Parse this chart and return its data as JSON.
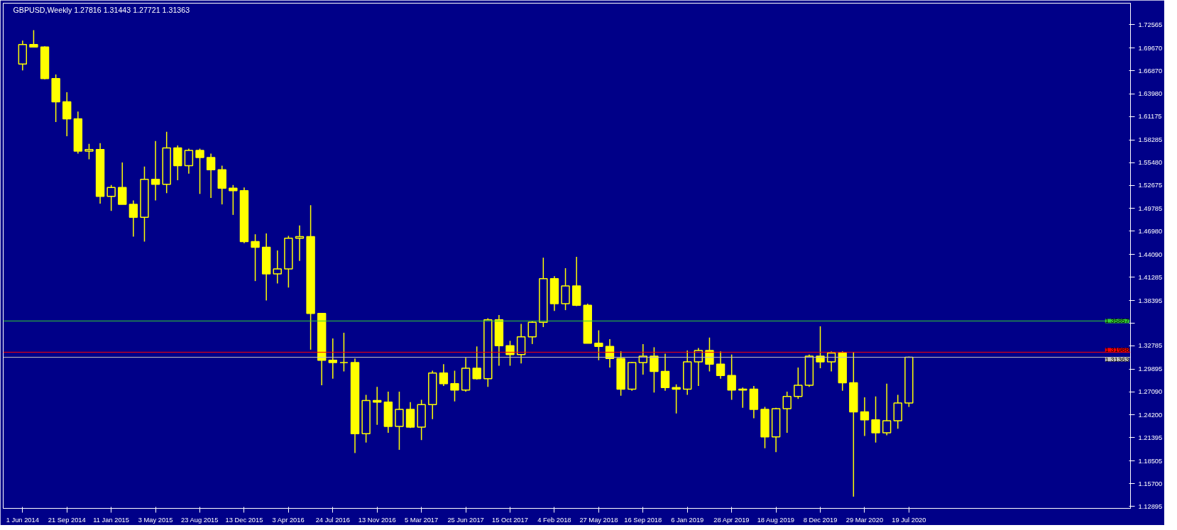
{
  "chart_data": {
    "type": "candlestick",
    "title": "GBPUSD,Weekly  1.27816 1.31443 1.27721 1.31363",
    "x": [
      "2014-06-01",
      "2014-06-29",
      "2014-07-27",
      "2014-08-24",
      "2014-09-21",
      "2014-10-19",
      "2014-11-16",
      "2014-12-14",
      "2015-01-11",
      "2015-02-08",
      "2015-03-08",
      "2015-04-05",
      "2015-05-03",
      "2015-05-31",
      "2015-06-28",
      "2015-07-26",
      "2015-08-23",
      "2015-09-20",
      "2015-10-18",
      "2015-11-15",
      "2015-12-13",
      "2016-01-10",
      "2016-02-07",
      "2016-03-06",
      "2016-04-03",
      "2016-05-01",
      "2016-05-29",
      "2016-06-26",
      "2016-07-24",
      "2016-08-21",
      "2016-09-18",
      "2016-10-16",
      "2016-11-13",
      "2016-12-11",
      "2017-01-08",
      "2017-02-05",
      "2017-03-05",
      "2017-04-02",
      "2017-04-30",
      "2017-05-28",
      "2017-06-25",
      "2017-07-23",
      "2017-08-20",
      "2017-09-17",
      "2017-10-15",
      "2017-11-12",
      "2017-12-10",
      "2018-01-07",
      "2018-02-04",
      "2018-03-04",
      "2018-04-01",
      "2018-04-29",
      "2018-05-27",
      "2018-06-24",
      "2018-07-22",
      "2018-08-19",
      "2018-09-16",
      "2018-10-14",
      "2018-11-11",
      "2018-12-09",
      "2019-01-06",
      "2019-02-03",
      "2019-03-03",
      "2019-03-31",
      "2019-04-28",
      "2019-05-26",
      "2019-06-23",
      "2019-07-21",
      "2019-08-18",
      "2019-09-15",
      "2019-10-13",
      "2019-11-10",
      "2019-12-08",
      "2020-01-05",
      "2020-02-02",
      "2020-03-01",
      "2020-03-29",
      "2020-04-26",
      "2020-05-24",
      "2020-06-21",
      "2020-07-19"
    ],
    "ohlc": [
      [
        1.677,
        1.706,
        1.669,
        1.701
      ],
      [
        1.701,
        1.719,
        1.698,
        1.698
      ],
      [
        1.698,
        1.699,
        1.658,
        1.659
      ],
      [
        1.659,
        1.664,
        1.605,
        1.63
      ],
      [
        1.63,
        1.642,
        1.5875,
        1.609
      ],
      [
        1.609,
        1.618,
        1.566,
        1.569
      ],
      [
        1.569,
        1.578,
        1.559,
        1.571
      ],
      [
        1.571,
        1.579,
        1.504,
        1.513
      ],
      [
        1.513,
        1.527,
        1.495,
        1.524
      ],
      [
        1.524,
        1.555,
        1.503,
        1.503
      ],
      [
        1.503,
        1.508,
        1.463,
        1.487
      ],
      [
        1.487,
        1.55,
        1.457,
        1.534
      ],
      [
        1.534,
        1.5815,
        1.508,
        1.528
      ],
      [
        1.528,
        1.593,
        1.517,
        1.573
      ],
      [
        1.573,
        1.576,
        1.533,
        1.551
      ],
      [
        1.551,
        1.572,
        1.541,
        1.57
      ],
      [
        1.57,
        1.572,
        1.516,
        1.561
      ],
      [
        1.561,
        1.566,
        1.511,
        1.546
      ],
      [
        1.546,
        1.551,
        1.503,
        1.523
      ],
      [
        1.523,
        1.527,
        1.49,
        1.52
      ],
      [
        1.52,
        1.524,
        1.455,
        1.457
      ],
      [
        1.457,
        1.466,
        1.408,
        1.45
      ],
      [
        1.45,
        1.467,
        1.384,
        1.417
      ],
      [
        1.417,
        1.446,
        1.405,
        1.423
      ],
      [
        1.423,
        1.464,
        1.4,
        1.461
      ],
      [
        1.461,
        1.477,
        1.433,
        1.463
      ],
      [
        1.463,
        1.502,
        1.323,
        1.368
      ],
      [
        1.368,
        1.368,
        1.279,
        1.31
      ],
      [
        1.31,
        1.337,
        1.287,
        1.307
      ],
      [
        1.307,
        1.344,
        1.296,
        1.307
      ],
      [
        1.307,
        1.312,
        1.195,
        1.219
      ],
      [
        1.219,
        1.267,
        1.208,
        1.26
      ],
      [
        1.26,
        1.277,
        1.23,
        1.258
      ],
      [
        1.258,
        1.271,
        1.22,
        1.228
      ],
      [
        1.228,
        1.271,
        1.199,
        1.249
      ],
      [
        1.249,
        1.258,
        1.226,
        1.227
      ],
      [
        1.227,
        1.261,
        1.211,
        1.255
      ],
      [
        1.255,
        1.297,
        1.237,
        1.294
      ],
      [
        1.294,
        1.305,
        1.278,
        1.281
      ],
      [
        1.281,
        1.297,
        1.259,
        1.273
      ],
      [
        1.273,
        1.313,
        1.271,
        1.3
      ],
      [
        1.3,
        1.327,
        1.286,
        1.287
      ],
      [
        1.287,
        1.362,
        1.277,
        1.36
      ],
      [
        1.36,
        1.366,
        1.303,
        1.328
      ],
      [
        1.328,
        1.334,
        1.303,
        1.317
      ],
      [
        1.317,
        1.355,
        1.306,
        1.339
      ],
      [
        1.339,
        1.358,
        1.33,
        1.357
      ],
      [
        1.357,
        1.437,
        1.351,
        1.411
      ],
      [
        1.411,
        1.414,
        1.371,
        1.38
      ],
      [
        1.38,
        1.424,
        1.372,
        1.402
      ],
      [
        1.402,
        1.438,
        1.377,
        1.378
      ],
      [
        1.378,
        1.38,
        1.331,
        1.331
      ],
      [
        1.331,
        1.347,
        1.31,
        1.327
      ],
      [
        1.327,
        1.336,
        1.301,
        1.312
      ],
      [
        1.312,
        1.321,
        1.266,
        1.274
      ],
      [
        1.274,
        1.308,
        1.272,
        1.307
      ],
      [
        1.307,
        1.33,
        1.292,
        1.315
      ],
      [
        1.315,
        1.326,
        1.27,
        1.296
      ],
      [
        1.296,
        1.318,
        1.272,
        1.276
      ],
      [
        1.276,
        1.28,
        1.244,
        1.274
      ],
      [
        1.274,
        1.322,
        1.267,
        1.308
      ],
      [
        1.308,
        1.325,
        1.278,
        1.322
      ],
      [
        1.322,
        1.338,
        1.296,
        1.305
      ],
      [
        1.305,
        1.321,
        1.287,
        1.291
      ],
      [
        1.291,
        1.317,
        1.261,
        1.273
      ],
      [
        1.273,
        1.276,
        1.251,
        1.274
      ],
      [
        1.274,
        1.278,
        1.238,
        1.249
      ],
      [
        1.249,
        1.252,
        1.201,
        1.215
      ],
      [
        1.215,
        1.251,
        1.196,
        1.25
      ],
      [
        1.25,
        1.271,
        1.22,
        1.265
      ],
      [
        1.265,
        1.301,
        1.262,
        1.279
      ],
      [
        1.279,
        1.317,
        1.277,
        1.315
      ],
      [
        1.315,
        1.352,
        1.3,
        1.308
      ],
      [
        1.308,
        1.321,
        1.296,
        1.319
      ],
      [
        1.319,
        1.321,
        1.272,
        1.282
      ],
      [
        1.282,
        1.32,
        1.141,
        1.246
      ],
      [
        1.246,
        1.264,
        1.216,
        1.236
      ],
      [
        1.236,
        1.265,
        1.208,
        1.22
      ],
      [
        1.22,
        1.281,
        1.217,
        1.235
      ],
      [
        1.235,
        1.267,
        1.225,
        1.257
      ],
      [
        1.257,
        1.3144,
        1.252,
        1.3136
      ]
    ],
    "color": "#ffff00",
    "xlim": [
      "2014-04-13",
      "2022-01-30"
    ],
    "xticks": [
      {
        "value": "2014-06-01",
        "label": "1 Jun 2014"
      },
      {
        "value": "2014-09-21",
        "label": "21 Sep 2014"
      },
      {
        "value": "2015-01-11",
        "label": "11 Jan 2015"
      },
      {
        "value": "2015-05-03",
        "label": "3 May 2015"
      },
      {
        "value": "2015-08-23",
        "label": "23 Aug 2015"
      },
      {
        "value": "2015-12-13",
        "label": "13 Dec 2015"
      },
      {
        "value": "2016-04-03",
        "label": "3 Apr 2016"
      },
      {
        "value": "2016-07-24",
        "label": "24 Jul 2016"
      },
      {
        "value": "2016-11-13",
        "label": "13 Nov 2016"
      },
      {
        "value": "2017-03-05",
        "label": "5 Mar 2017"
      },
      {
        "value": "2017-06-25",
        "label": "25 Jun 2017"
      },
      {
        "value": "2017-10-15",
        "label": "15 Oct 2017"
      },
      {
        "value": "2018-02-04",
        "label": "4 Feb 2018"
      },
      {
        "value": "2018-05-27",
        "label": "27 May 2018"
      },
      {
        "value": "2018-09-16",
        "label": "16 Sep 2018"
      },
      {
        "value": "2019-01-06",
        "label": "6 Jan 2019"
      },
      {
        "value": "2019-04-28",
        "label": "28 Apr 2019"
      },
      {
        "value": "2019-08-18",
        "label": "18 Aug 2019"
      },
      {
        "value": "2019-12-08",
        "label": "8 Dec 2019"
      },
      {
        "value": "2020-03-29",
        "label": "29 Mar 2020"
      },
      {
        "value": "2020-07-19",
        "label": "19 Jul 2020"
      }
    ],
    "ylim": [
      1.1264,
      1.7523
    ],
    "yticks": [
      1.12895,
      {
        "value": 1.157,
        "label": "1.15700"
      },
      1.18505,
      1.21395,
      {
        "value": 1.242,
        "label": "1.24200"
      },
      {
        "value": 1.2709,
        "label": "1.27090"
      },
      1.29895,
      1.32785,
      {
        "value": 1.3559,
        "label": null
      },
      1.38395,
      1.41285,
      {
        "value": 1.4409,
        "label": "1.44090"
      },
      {
        "value": 1.4698,
        "label": "1.46980"
      },
      1.49785,
      1.52675,
      {
        "value": 1.5548,
        "label": "1.55480"
      },
      1.58285,
      1.61175,
      {
        "value": 1.6398,
        "label": "1.63980"
      },
      {
        "value": 1.6687,
        "label": "1.66870"
      },
      {
        "value": 1.6967,
        "label": "1.69670"
      },
      1.72565
    ],
    "ref_lines": [
      {
        "axis": "y",
        "value": 1.35857,
        "label": "1.35857",
        "color": "#32cd32"
      },
      {
        "axis": "y",
        "value": 1.31988,
        "label": "1.31988",
        "color": "#ff0000"
      },
      {
        "axis": "y",
        "value": 1.31363,
        "label": "1.31363",
        "color": "#c0c0c0"
      }
    ],
    "grid": false
  }
}
